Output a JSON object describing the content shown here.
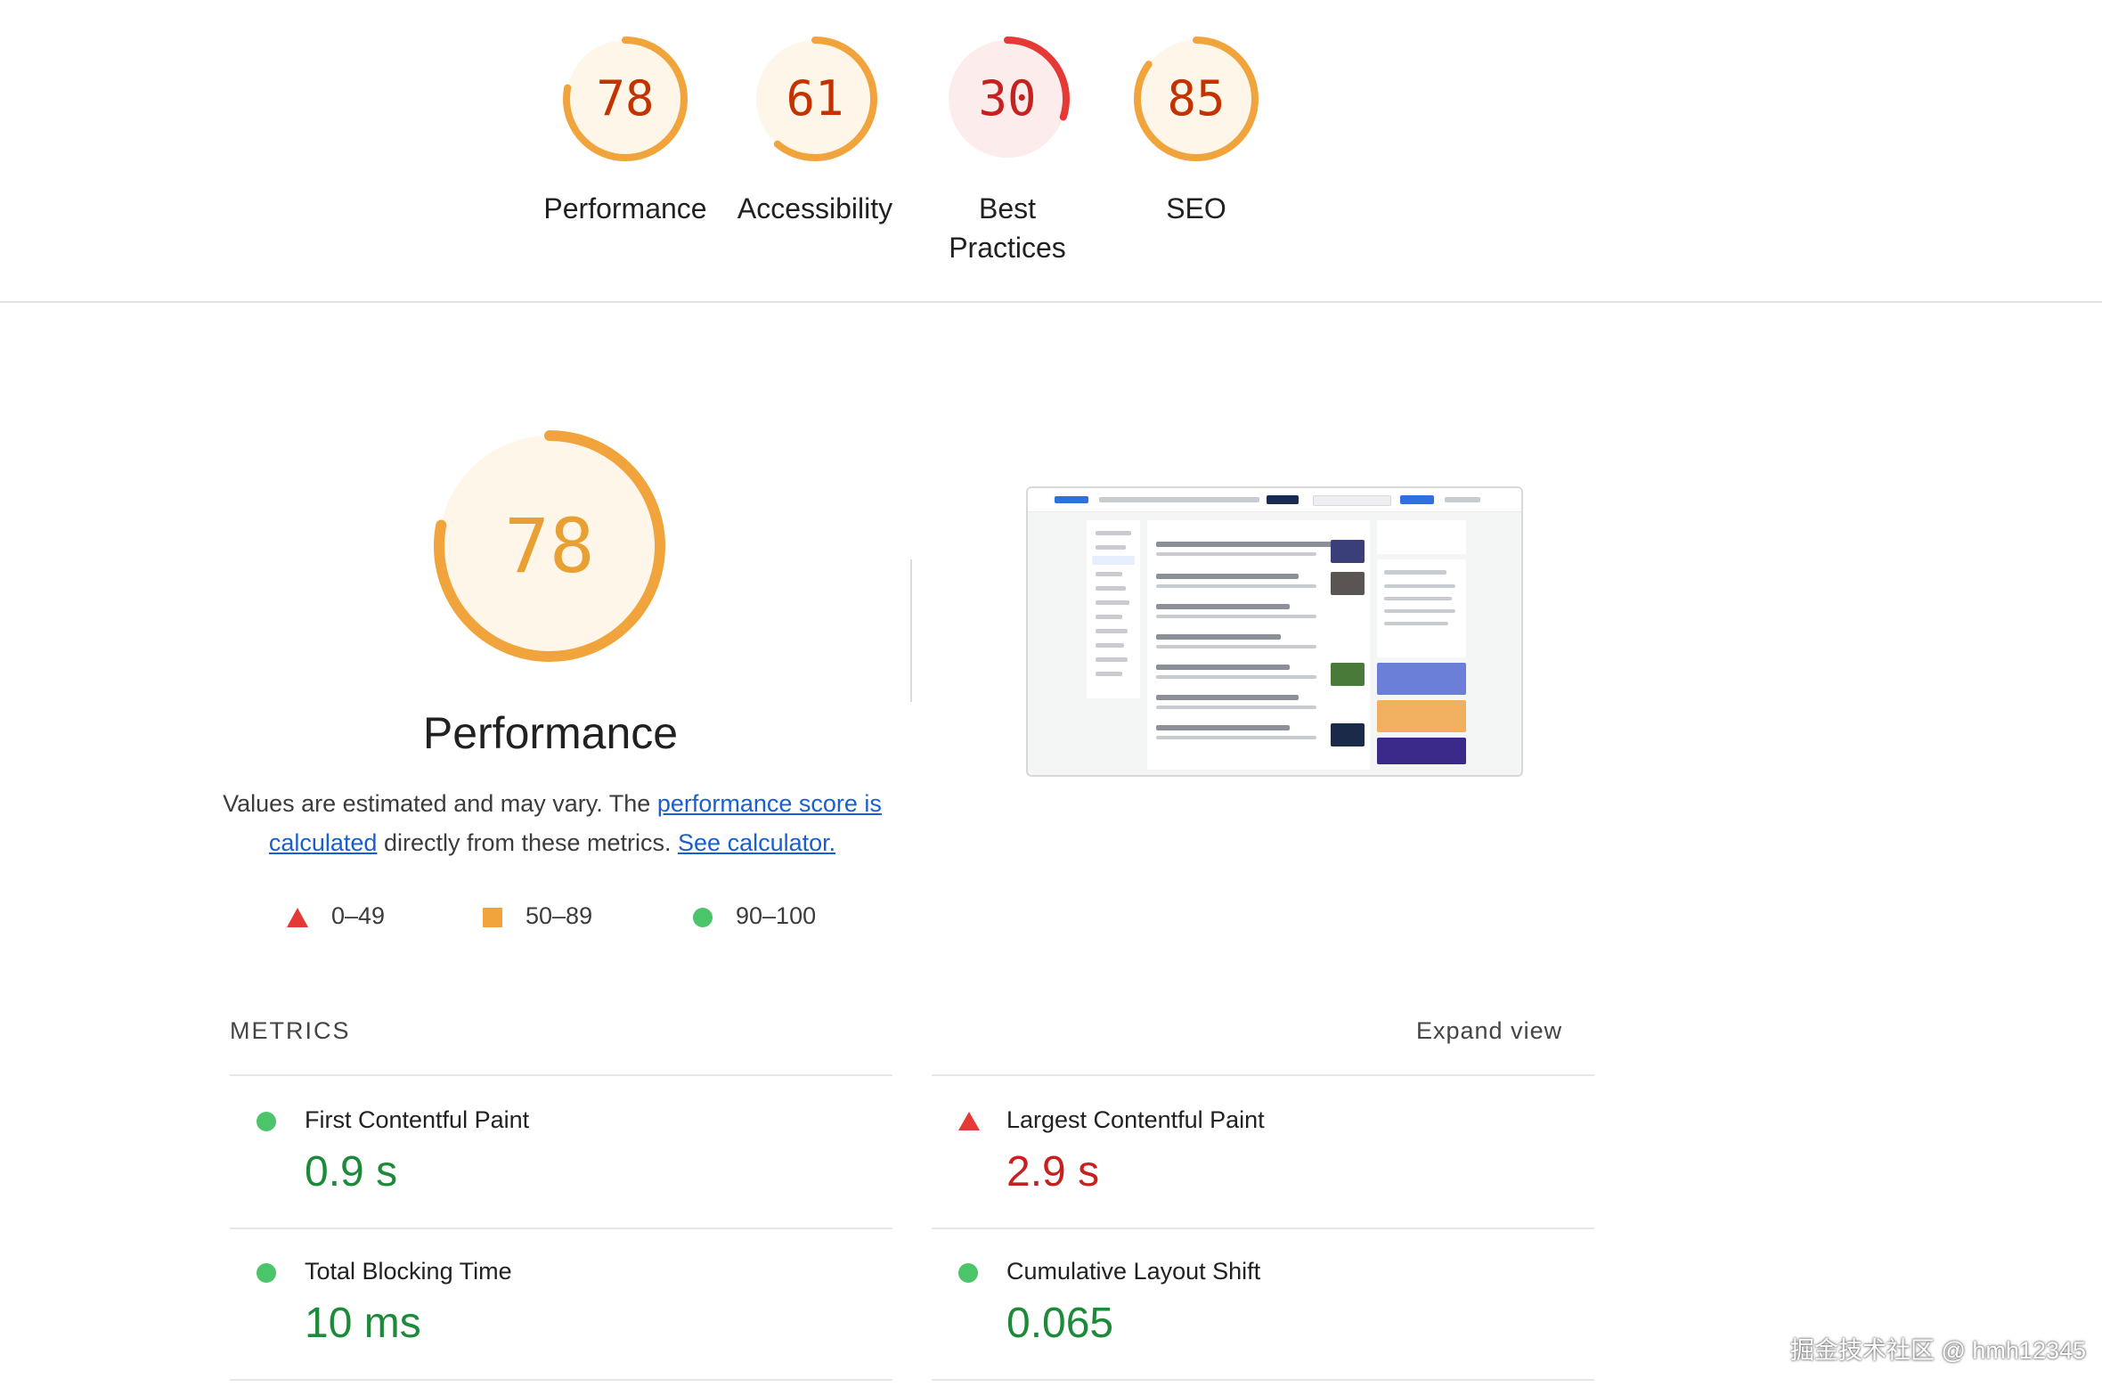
{
  "scores": [
    {
      "value": 78,
      "label": "Performance",
      "fraction": 0.78,
      "status": "average"
    },
    {
      "value": 61,
      "label": "Accessibility",
      "fraction": 0.61,
      "status": "average"
    },
    {
      "value": 30,
      "label": "Best Practices",
      "fraction": 0.3,
      "status": "fail"
    },
    {
      "value": 85,
      "label": "SEO",
      "fraction": 0.85,
      "status": "average"
    }
  ],
  "colors": {
    "average_arc": "#f0a43b",
    "average_fill": "#fff6ea",
    "fail_arc": "#e53935",
    "fail_fill": "#fdecec",
    "pass": "#4cc46a",
    "link": "#1a5fd0"
  },
  "performance": {
    "score": 78,
    "fraction": 0.78,
    "title": "Performance",
    "desc_prefix": "Values are estimated and may vary. The ",
    "desc_link1": "performance score is calculated",
    "desc_middle": " directly from these metrics. ",
    "desc_link2": "See calculator.",
    "legend": [
      {
        "icon": "red-triangle-icon",
        "range": "0–49"
      },
      {
        "icon": "orange-square-icon",
        "range": "50–89"
      },
      {
        "icon": "green-circle-icon",
        "range": "90–100"
      }
    ]
  },
  "metrics": {
    "heading": "METRICS",
    "expand_label": "Expand view",
    "items": [
      {
        "label": "First Contentful Paint",
        "value": "0.9 s",
        "status": "pass"
      },
      {
        "label": "Largest Contentful Paint",
        "value": "2.9 s",
        "status": "fail"
      },
      {
        "label": "Total Blocking Time",
        "value": "10 ms",
        "status": "pass"
      },
      {
        "label": "Cumulative Layout Shift",
        "value": "0.065",
        "status": "pass"
      }
    ]
  },
  "watermark": "掘金技术社区 @ hmh12345"
}
